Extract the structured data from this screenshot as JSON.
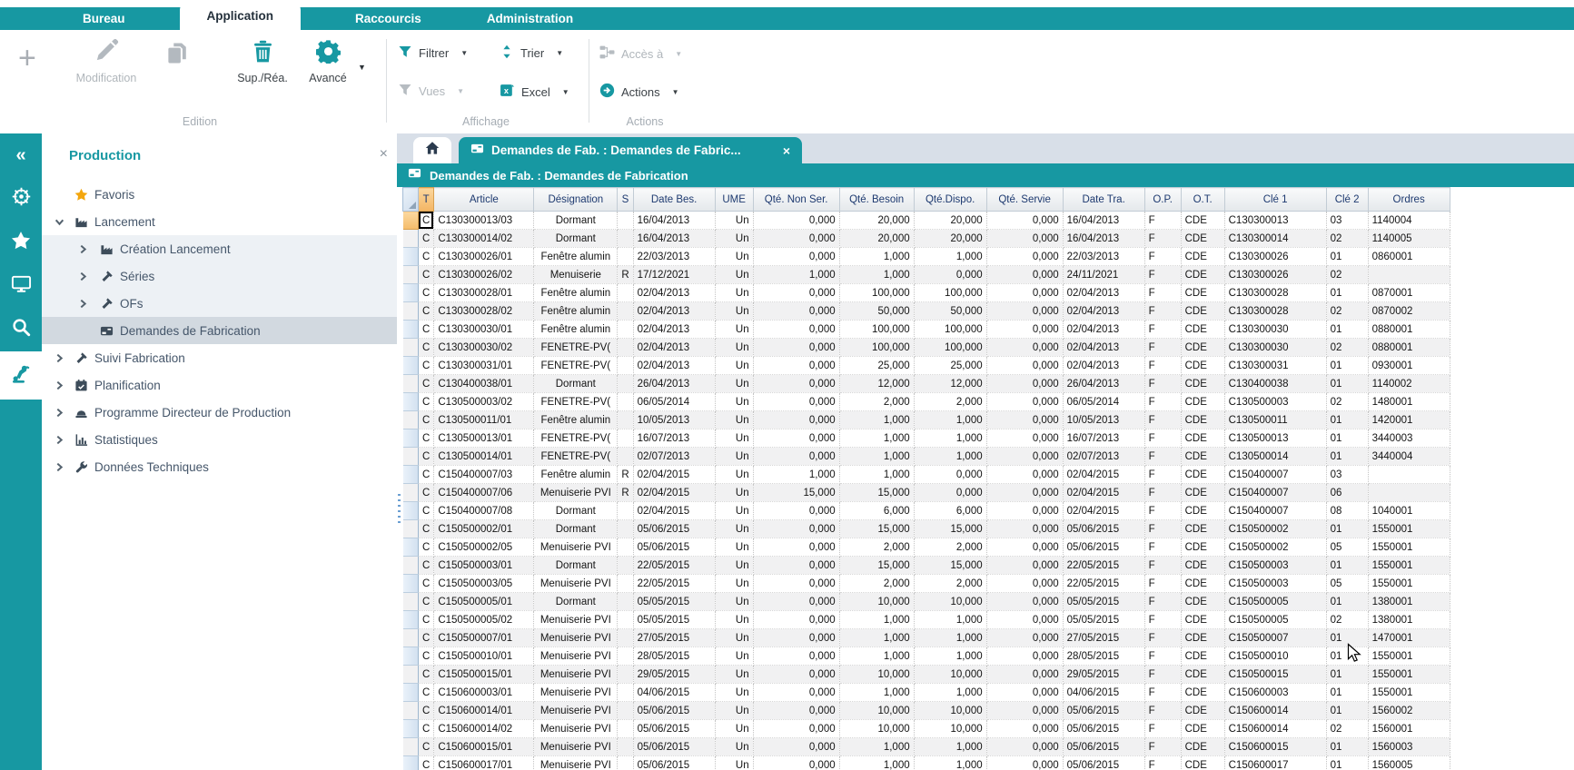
{
  "colors": {
    "teal": "#1798a2",
    "selected_header_orange": "#f5bc6a",
    "tabstrip_bg": "#d8dfe8"
  },
  "ribbon": {
    "tabs": [
      {
        "label": "Bureau",
        "active": false
      },
      {
        "label": "Application",
        "active": true
      },
      {
        "label": "Raccourcis",
        "active": false
      },
      {
        "label": "Administration",
        "active": false
      }
    ],
    "edition": {
      "label": "Edition",
      "modification": "Modification",
      "suprea": "Sup./Réa.",
      "avance": "Avancé"
    },
    "affichage": {
      "label": "Affichage",
      "filtrer": "Filtrer",
      "trier": "Trier",
      "vues": "Vues",
      "excel": "Excel"
    },
    "actions_group": {
      "label": "Actions",
      "acces": "Accès à",
      "actions": "Actions"
    }
  },
  "sidebar": {
    "title": "Production",
    "close": "×",
    "tree": [
      {
        "label": "Favoris",
        "icon": "star-icon",
        "level": 0,
        "chevron": "none",
        "band": "",
        "icon_color": "#f3a60d"
      },
      {
        "label": "Lancement",
        "icon": "factory-icon",
        "level": 0,
        "chevron": "expanded",
        "band": ""
      },
      {
        "label": "Création Lancement",
        "icon": "factory-icon",
        "level": 1,
        "chevron": "collapsed",
        "band": "light"
      },
      {
        "label": "Séries",
        "icon": "hammer-icon",
        "level": 1,
        "chevron": "collapsed",
        "band": "light"
      },
      {
        "label": "OFs",
        "icon": "hammer-icon",
        "level": 1,
        "chevron": "collapsed",
        "band": "light"
      },
      {
        "label": "Demandes de Fabrication",
        "icon": "card-icon",
        "level": 1,
        "chevron": "none",
        "band": "selected"
      },
      {
        "label": "Suivi Fabrication",
        "icon": "hammer-icon",
        "level": 0,
        "chevron": "collapsed",
        "band": ""
      },
      {
        "label": "Planification",
        "icon": "calendar-icon",
        "level": 0,
        "chevron": "collapsed",
        "band": ""
      },
      {
        "label": "Programme Directeur de Production",
        "icon": "hardhat-icon",
        "level": 0,
        "chevron": "collapsed",
        "band": ""
      },
      {
        "label": "Statistiques",
        "icon": "chart-icon",
        "level": 0,
        "chevron": "collapsed",
        "band": ""
      },
      {
        "label": "Données Techniques",
        "icon": "wrench-icon",
        "level": 0,
        "chevron": "collapsed",
        "band": ""
      }
    ]
  },
  "rail": {
    "items": [
      {
        "icon": "collapse-icon",
        "active": false
      },
      {
        "icon": "wheel-icon",
        "active": false
      },
      {
        "icon": "star-icon",
        "active": false
      },
      {
        "icon": "monitor-icon",
        "active": false
      },
      {
        "icon": "search-icon",
        "active": false
      },
      {
        "icon": "robot-icon",
        "active": true
      }
    ]
  },
  "content": {
    "tab": {
      "title": "Demandes de Fab. : Demandes de Fabric...",
      "close": "×"
    },
    "titlebar": {
      "text": "Demandes de Fab. : Demandes de Fabrication"
    },
    "grid": {
      "columns": [
        "",
        "T",
        "Article",
        "Désignation",
        "S",
        "Date Bes.",
        "UME",
        "Qté. Non Ser.",
        "Qté. Besoin",
        "Qté.Dispo.",
        "Qté. Servie",
        "Date Tra.",
        "O.P.",
        "O.T.",
        "Clé 1",
        "Clé 2",
        "Ordres"
      ],
      "rows": [
        [
          "C",
          "C130300013/03",
          "Dormant",
          "",
          "16/04/2013",
          "Un",
          "0,000",
          "20,000",
          "20,000",
          "0,000",
          "16/04/2013",
          "F",
          "CDE",
          "C130300013",
          "03",
          "1140004"
        ],
        [
          "C",
          "C130300014/02",
          "Dormant",
          "",
          "16/04/2013",
          "Un",
          "0,000",
          "20,000",
          "20,000",
          "0,000",
          "16/04/2013",
          "F",
          "CDE",
          "C130300014",
          "02",
          "1140005"
        ],
        [
          "C",
          "C130300026/01",
          "Fenêtre alumin",
          "",
          "22/03/2013",
          "Un",
          "0,000",
          "1,000",
          "1,000",
          "0,000",
          "22/03/2013",
          "F",
          "CDE",
          "C130300026",
          "01",
          "0860001"
        ],
        [
          "C",
          "C130300026/02",
          "Menuiserie",
          "R",
          "17/12/2021",
          "Un",
          "1,000",
          "1,000",
          "0,000",
          "0,000",
          "24/11/2021",
          "F",
          "CDE",
          "C130300026",
          "02",
          ""
        ],
        [
          "C",
          "C130300028/01",
          "Fenêtre alumin",
          "",
          "02/04/2013",
          "Un",
          "0,000",
          "100,000",
          "100,000",
          "0,000",
          "02/04/2013",
          "F",
          "CDE",
          "C130300028",
          "01",
          "0870001"
        ],
        [
          "C",
          "C130300028/02",
          "Fenêtre alumin",
          "",
          "02/04/2013",
          "Un",
          "0,000",
          "50,000",
          "50,000",
          "0,000",
          "02/04/2013",
          "F",
          "CDE",
          "C130300028",
          "02",
          "0870002"
        ],
        [
          "C",
          "C130300030/01",
          "Fenêtre alumin",
          "",
          "02/04/2013",
          "Un",
          "0,000",
          "100,000",
          "100,000",
          "0,000",
          "02/04/2013",
          "F",
          "CDE",
          "C130300030",
          "01",
          "0880001"
        ],
        [
          "C",
          "C130300030/02",
          "FENETRE-PV(",
          "",
          "02/04/2013",
          "Un",
          "0,000",
          "100,000",
          "100,000",
          "0,000",
          "02/04/2013",
          "F",
          "CDE",
          "C130300030",
          "02",
          "0880001"
        ],
        [
          "C",
          "C130300031/01",
          "FENETRE-PV(",
          "",
          "02/04/2013",
          "Un",
          "0,000",
          "25,000",
          "25,000",
          "0,000",
          "02/04/2013",
          "F",
          "CDE",
          "C130300031",
          "01",
          "0930001"
        ],
        [
          "C",
          "C130400038/01",
          "Dormant",
          "",
          "26/04/2013",
          "Un",
          "0,000",
          "12,000",
          "12,000",
          "0,000",
          "26/04/2013",
          "F",
          "CDE",
          "C130400038",
          "01",
          "1140002"
        ],
        [
          "C",
          "C130500003/02",
          "FENETRE-PV(",
          "",
          "06/05/2014",
          "Un",
          "0,000",
          "2,000",
          "2,000",
          "0,000",
          "06/05/2014",
          "F",
          "CDE",
          "C130500003",
          "02",
          "1480001"
        ],
        [
          "C",
          "C130500011/01",
          "Fenêtre alumin",
          "",
          "10/05/2013",
          "Un",
          "0,000",
          "1,000",
          "1,000",
          "0,000",
          "10/05/2013",
          "F",
          "CDE",
          "C130500011",
          "01",
          "1420001"
        ],
        [
          "C",
          "C130500013/01",
          "FENETRE-PV(",
          "",
          "16/07/2013",
          "Un",
          "0,000",
          "1,000",
          "1,000",
          "0,000",
          "16/07/2013",
          "F",
          "CDE",
          "C130500013",
          "01",
          "3440003"
        ],
        [
          "C",
          "C130500014/01",
          "FENETRE-PV(",
          "",
          "02/07/2013",
          "Un",
          "0,000",
          "1,000",
          "1,000",
          "0,000",
          "02/07/2013",
          "F",
          "CDE",
          "C130500014",
          "01",
          "3440004"
        ],
        [
          "C",
          "C150400007/03",
          "Fenêtre alumin",
          "R",
          "02/04/2015",
          "Un",
          "1,000",
          "1,000",
          "0,000",
          "0,000",
          "02/04/2015",
          "F",
          "CDE",
          "C150400007",
          "03",
          ""
        ],
        [
          "C",
          "C150400007/06",
          "Menuiserie PVI",
          "R",
          "02/04/2015",
          "Un",
          "15,000",
          "15,000",
          "0,000",
          "0,000",
          "02/04/2015",
          "F",
          "CDE",
          "C150400007",
          "06",
          ""
        ],
        [
          "C",
          "C150400007/08",
          "Dormant",
          "",
          "02/04/2015",
          "Un",
          "0,000",
          "6,000",
          "6,000",
          "0,000",
          "02/04/2015",
          "F",
          "CDE",
          "C150400007",
          "08",
          "1040001"
        ],
        [
          "C",
          "C150500002/01",
          "Dormant",
          "",
          "05/06/2015",
          "Un",
          "0,000",
          "15,000",
          "15,000",
          "0,000",
          "05/06/2015",
          "F",
          "CDE",
          "C150500002",
          "01",
          "1550001"
        ],
        [
          "C",
          "C150500002/05",
          "Menuiserie PVI",
          "",
          "05/06/2015",
          "Un",
          "0,000",
          "2,000",
          "2,000",
          "0,000",
          "05/06/2015",
          "F",
          "CDE",
          "C150500002",
          "05",
          "1550001"
        ],
        [
          "C",
          "C150500003/01",
          "Dormant",
          "",
          "22/05/2015",
          "Un",
          "0,000",
          "15,000",
          "15,000",
          "0,000",
          "22/05/2015",
          "F",
          "CDE",
          "C150500003",
          "01",
          "1550001"
        ],
        [
          "C",
          "C150500003/05",
          "Menuiserie PVI",
          "",
          "22/05/2015",
          "Un",
          "0,000",
          "2,000",
          "2,000",
          "0,000",
          "22/05/2015",
          "F",
          "CDE",
          "C150500003",
          "05",
          "1550001"
        ],
        [
          "C",
          "C150500005/01",
          "Dormant",
          "",
          "05/05/2015",
          "Un",
          "0,000",
          "10,000",
          "10,000",
          "0,000",
          "05/05/2015",
          "F",
          "CDE",
          "C150500005",
          "01",
          "1380001"
        ],
        [
          "C",
          "C150500005/02",
          "Menuiserie PVI",
          "",
          "05/05/2015",
          "Un",
          "0,000",
          "1,000",
          "1,000",
          "0,000",
          "05/05/2015",
          "F",
          "CDE",
          "C150500005",
          "02",
          "1380001"
        ],
        [
          "C",
          "C150500007/01",
          "Menuiserie PVI",
          "",
          "27/05/2015",
          "Un",
          "0,000",
          "1,000",
          "1,000",
          "0,000",
          "27/05/2015",
          "F",
          "CDE",
          "C150500007",
          "01",
          "1470001"
        ],
        [
          "C",
          "C150500010/01",
          "Menuiserie PVI",
          "",
          "28/05/2015",
          "Un",
          "0,000",
          "1,000",
          "1,000",
          "0,000",
          "28/05/2015",
          "F",
          "CDE",
          "C150500010",
          "01",
          "1550001"
        ],
        [
          "C",
          "C150500015/01",
          "Menuiserie PVI",
          "",
          "29/05/2015",
          "Un",
          "0,000",
          "10,000",
          "10,000",
          "0,000",
          "29/05/2015",
          "F",
          "CDE",
          "C150500015",
          "01",
          "1550001"
        ],
        [
          "C",
          "C150600003/01",
          "Menuiserie PVI",
          "",
          "04/06/2015",
          "Un",
          "0,000",
          "1,000",
          "1,000",
          "0,000",
          "04/06/2015",
          "F",
          "CDE",
          "C150600003",
          "01",
          "1550001"
        ],
        [
          "C",
          "C150600014/01",
          "Menuiserie PVI",
          "",
          "05/06/2015",
          "Un",
          "0,000",
          "10,000",
          "10,000",
          "0,000",
          "05/06/2015",
          "F",
          "CDE",
          "C150600014",
          "01",
          "1560002"
        ],
        [
          "C",
          "C150600014/02",
          "Menuiserie PVI",
          "",
          "05/06/2015",
          "Un",
          "0,000",
          "10,000",
          "10,000",
          "0,000",
          "05/06/2015",
          "F",
          "CDE",
          "C150600014",
          "02",
          "1560001"
        ],
        [
          "C",
          "C150600015/01",
          "Menuiserie PVI",
          "",
          "05/06/2015",
          "Un",
          "0,000",
          "1,000",
          "1,000",
          "0,000",
          "05/06/2015",
          "F",
          "CDE",
          "C150600015",
          "01",
          "1560003"
        ],
        [
          "C",
          "C150600017/01",
          "Menuiserie PVI",
          "",
          "05/06/2015",
          "Un",
          "0,000",
          "1,000",
          "1,000",
          "0,000",
          "05/06/2015",
          "F",
          "CDE",
          "C150600017",
          "01",
          "1560005"
        ]
      ]
    }
  }
}
